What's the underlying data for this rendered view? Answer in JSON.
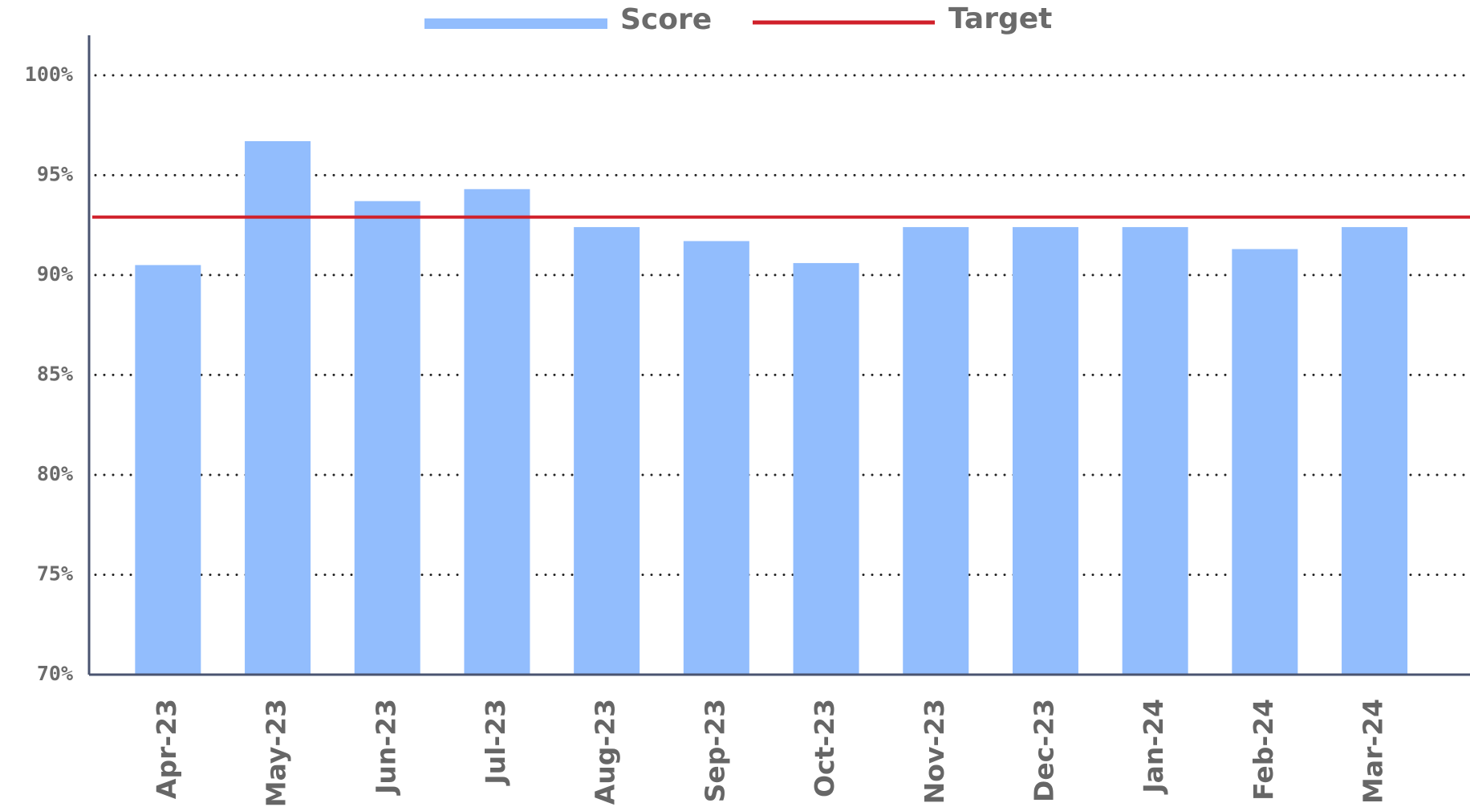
{
  "chart_data": {
    "type": "bar",
    "categories": [
      "Apr-23",
      "May-23",
      "Jun-23",
      "Jul-23",
      "Aug-23",
      "Sep-23",
      "Oct-23",
      "Nov-23",
      "Dec-23",
      "Jan-24",
      "Feb-24",
      "Mar-24"
    ],
    "series": [
      {
        "name": "Score",
        "color": "#92bdfd",
        "values": [
          90.5,
          96.7,
          93.7,
          94.3,
          92.4,
          91.7,
          90.6,
          92.4,
          92.4,
          92.4,
          91.3,
          92.4
        ]
      }
    ],
    "target_line": {
      "name": "Target",
      "color": "#d0202a",
      "value": 92.9
    },
    "ylim": [
      70,
      102
    ],
    "yticks": [
      {
        "value": 70,
        "label": "70%"
      },
      {
        "value": 75,
        "label": "75%"
      },
      {
        "value": 80,
        "label": "80%"
      },
      {
        "value": 85,
        "label": "85%"
      },
      {
        "value": 90,
        "label": "90%"
      },
      {
        "value": 95,
        "label": "95%"
      },
      {
        "value": 100,
        "label": "100%"
      }
    ],
    "grid": true
  }
}
